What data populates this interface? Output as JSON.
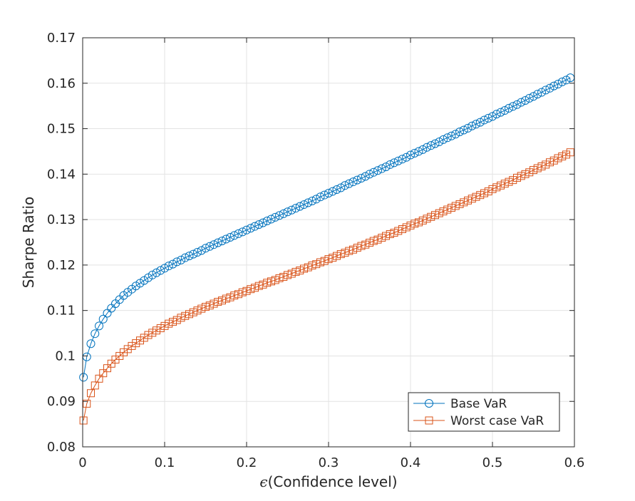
{
  "chart_data": {
    "type": "line",
    "title": "",
    "xlabel_symbol": "ϵ",
    "xlabel": "(Confidence level)",
    "ylabel": "Sharpe Ratio",
    "xlim": [
      0,
      0.6
    ],
    "ylim": [
      0.08,
      0.17
    ],
    "x_ticks": [
      0,
      0.1,
      0.2,
      0.3,
      0.4,
      0.5,
      0.6
    ],
    "x_tick_labels": [
      "0",
      "0.1",
      "0.2",
      "0.3",
      "0.4",
      "0.5",
      "0.6"
    ],
    "y_ticks": [
      0.08,
      0.09,
      0.1,
      0.11,
      0.12,
      0.13,
      0.14,
      0.15,
      0.16,
      0.17
    ],
    "y_tick_labels": [
      "0.08",
      "0.09",
      "0.1",
      "0.11",
      "0.12",
      "0.13",
      "0.14",
      "0.15",
      "0.16",
      "0.17"
    ],
    "grid": true,
    "legend_position": "bottom-right",
    "x": [
      0.001,
      0.005,
      0.01,
      0.015,
      0.02,
      0.025,
      0.03,
      0.035,
      0.04,
      0.045,
      0.05,
      0.055,
      0.06,
      0.065,
      0.07,
      0.075,
      0.08,
      0.085,
      0.09,
      0.095,
      0.1,
      0.105,
      0.11,
      0.115,
      0.12,
      0.125,
      0.13,
      0.135,
      0.14,
      0.145,
      0.15,
      0.155,
      0.16,
      0.165,
      0.17,
      0.175,
      0.18,
      0.185,
      0.19,
      0.195,
      0.2,
      0.205,
      0.21,
      0.215,
      0.22,
      0.225,
      0.23,
      0.235,
      0.24,
      0.245,
      0.25,
      0.255,
      0.26,
      0.265,
      0.27,
      0.275,
      0.28,
      0.285,
      0.29,
      0.295,
      0.3,
      0.305,
      0.31,
      0.315,
      0.32,
      0.325,
      0.33,
      0.335,
      0.34,
      0.345,
      0.35,
      0.355,
      0.36,
      0.365,
      0.37,
      0.375,
      0.38,
      0.385,
      0.39,
      0.395,
      0.4,
      0.405,
      0.41,
      0.415,
      0.42,
      0.425,
      0.43,
      0.435,
      0.44,
      0.445,
      0.45,
      0.455,
      0.46,
      0.465,
      0.47,
      0.475,
      0.48,
      0.485,
      0.49,
      0.495,
      0.5,
      0.505,
      0.51,
      0.515,
      0.52,
      0.525,
      0.53,
      0.535,
      0.54,
      0.545,
      0.55,
      0.555,
      0.56,
      0.565,
      0.57,
      0.575,
      0.58,
      0.585,
      0.59,
      0.595
    ],
    "series": [
      {
        "name": "Base VaR",
        "color": "#0072BD",
        "marker": "circle",
        "values": [
          0.0953,
          0.0998,
          0.1027,
          0.1049,
          0.1066,
          0.1081,
          0.1094,
          0.1105,
          0.1115,
          0.1124,
          0.1133,
          0.114,
          0.1147,
          0.1154,
          0.116,
          0.1166,
          0.1172,
          0.1178,
          0.1183,
          0.1188,
          0.1193,
          0.1198,
          0.1202,
          0.1207,
          0.1211,
          0.1216,
          0.122,
          0.1224,
          0.1228,
          0.1232,
          0.1237,
          0.1241,
          0.1245,
          0.1249,
          0.1253,
          0.1257,
          0.1261,
          0.1265,
          0.1269,
          0.1273,
          0.1277,
          0.1281,
          0.1285,
          0.1289,
          0.1293,
          0.1297,
          0.1301,
          0.1305,
          0.1309,
          0.1313,
          0.1317,
          0.1321,
          0.1325,
          0.1329,
          0.1333,
          0.1337,
          0.1341,
          0.1345,
          0.135,
          0.1354,
          0.1358,
          0.1362,
          0.1366,
          0.137,
          0.1375,
          0.1379,
          0.1383,
          0.1387,
          0.1391,
          0.1395,
          0.14,
          0.1404,
          0.1408,
          0.1412,
          0.1416,
          0.1421,
          0.1425,
          0.1429,
          0.1433,
          0.1437,
          0.1442,
          0.1446,
          0.145,
          0.1454,
          0.1459,
          0.1463,
          0.1467,
          0.1471,
          0.1476,
          0.148,
          0.1484,
          0.1488,
          0.1493,
          0.1497,
          0.1501,
          0.1506,
          0.151,
          0.1514,
          0.1519,
          0.1523,
          0.1527,
          0.1532,
          0.1536,
          0.154,
          0.1545,
          0.1549,
          0.1553,
          0.1558,
          0.1562,
          0.1567,
          0.1571,
          0.1576,
          0.158,
          0.1585,
          0.1589,
          0.1594,
          0.1598,
          0.1603,
          0.1607,
          0.1612
        ]
      },
      {
        "name": "Worst case VaR",
        "color": "#D95319",
        "marker": "square",
        "values": [
          0.0858,
          0.0895,
          0.0918,
          0.0935,
          0.095,
          0.0962,
          0.0973,
          0.0983,
          0.0992,
          0.1,
          0.1008,
          0.1015,
          0.1022,
          0.1028,
          0.1034,
          0.104,
          0.1046,
          0.1051,
          0.1056,
          0.1061,
          0.1066,
          0.1071,
          0.1075,
          0.1079,
          0.1084,
          0.1088,
          0.1092,
          0.1096,
          0.11,
          0.1104,
          0.1108,
          0.1111,
          0.1115,
          0.1119,
          0.1122,
          0.1126,
          0.1129,
          0.1133,
          0.1136,
          0.114,
          0.1143,
          0.1147,
          0.115,
          0.1154,
          0.1157,
          0.1161,
          0.1164,
          0.1167,
          0.1171,
          0.1174,
          0.1178,
          0.1181,
          0.1185,
          0.1188,
          0.1192,
          0.1195,
          0.1199,
          0.1202,
          0.1206,
          0.1209,
          0.1213,
          0.1216,
          0.122,
          0.1224,
          0.1227,
          0.1231,
          0.1234,
          0.1238,
          0.1242,
          0.1245,
          0.1249,
          0.1253,
          0.1256,
          0.126,
          0.1264,
          0.1268,
          0.1271,
          0.1275,
          0.1279,
          0.1283,
          0.1287,
          0.1291,
          0.1294,
          0.1298,
          0.1302,
          0.1306,
          0.131,
          0.1314,
          0.1318,
          0.1322,
          0.1326,
          0.133,
          0.1334,
          0.1338,
          0.1342,
          0.1346,
          0.135,
          0.1354,
          0.1358,
          0.1362,
          0.1367,
          0.1371,
          0.1375,
          0.1379,
          0.1383,
          0.1387,
          0.1392,
          0.1396,
          0.14,
          0.1404,
          0.1409,
          0.1413,
          0.1417,
          0.1421,
          0.1426,
          0.143,
          0.1435,
          0.1439,
          0.1443,
          0.1448
        ]
      }
    ]
  }
}
